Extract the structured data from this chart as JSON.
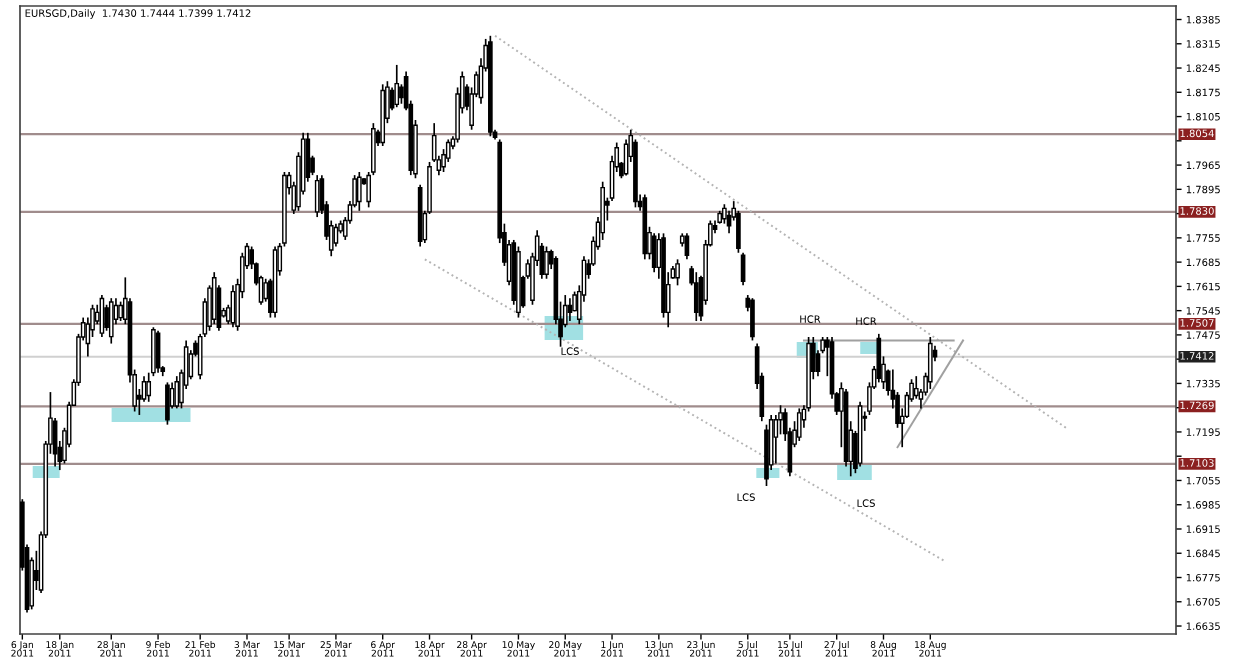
{
  "chart_data": {
    "type": "candlestick",
    "title": "EURSGD,Daily  1.7430 1.7444 1.7399 1.7412",
    "categories": [
      "6 Jan 2011",
      null,
      null,
      null,
      null,
      null,
      null,
      null,
      "18 Jan 2011",
      null,
      null,
      null,
      null,
      null,
      null,
      null,
      null,
      null,
      null,
      "28 Jan 2011",
      null,
      null,
      null,
      null,
      null,
      null,
      null,
      null,
      null,
      "9 Feb 2011",
      null,
      null,
      null,
      null,
      null,
      null,
      null,
      null,
      "21 Feb 2011",
      null,
      null,
      null,
      null,
      null,
      null,
      null,
      null,
      null,
      "3 Mar 2011",
      null,
      null,
      null,
      null,
      null,
      null,
      null,
      null,
      "15 Mar 2011",
      null,
      null,
      null,
      null,
      null,
      null,
      null,
      null,
      null,
      "25 Mar 2011",
      null,
      null,
      null,
      null,
      null,
      null,
      null,
      null,
      null,
      "6 Apr 2011",
      null,
      null,
      null,
      null,
      null,
      null,
      null,
      null,
      null,
      "18 Apr 2011",
      null,
      null,
      null,
      null,
      null,
      null,
      null,
      null,
      "28 Apr 2011",
      null,
      null,
      null,
      null,
      null,
      null,
      null,
      null,
      null,
      "10 May 2011",
      null,
      null,
      null,
      null,
      null,
      null,
      null,
      null,
      null,
      "20 May 2011",
      null,
      null,
      null,
      null,
      null,
      null,
      null,
      null,
      null,
      "1 Jun 2011",
      null,
      null,
      null,
      null,
      null,
      null,
      null,
      null,
      null,
      "13 Jun 2011",
      null,
      null,
      null,
      null,
      null,
      null,
      null,
      null,
      "23 Jun 2011",
      null,
      null,
      null,
      null,
      null,
      null,
      null,
      null,
      null,
      "5 Jul 2011",
      null,
      null,
      null,
      null,
      null,
      null,
      null,
      null,
      "15 Jul 2011",
      null,
      null,
      null,
      null,
      null,
      null,
      null,
      null,
      null,
      "27 Jul 2011",
      null,
      null,
      null,
      null,
      null,
      null,
      null,
      null,
      null,
      "8 Aug 2011",
      null,
      null,
      null,
      null,
      null,
      null,
      null,
      null,
      null,
      "18 Aug 2011",
      null,
      null,
      null,
      null,
      null,
      null,
      null,
      null,
      null,
      null,
      null,
      null,
      null,
      null,
      null,
      null,
      null,
      null,
      null,
      null,
      null,
      null,
      null,
      null,
      null,
      null,
      null,
      null,
      null,
      null,
      null,
      null,
      null,
      null,
      null,
      null,
      null,
      null,
      null,
      null,
      null,
      null,
      null,
      null,
      null,
      null,
      null,
      null,
      null,
      null,
      null,
      null
    ],
    "ohlc": [
      [
        1.6992,
        1.7001,
        1.6795,
        1.6805
      ],
      [
        1.6861,
        1.687,
        1.6674,
        1.6683
      ],
      [
        1.6693,
        1.6833,
        1.6683,
        1.6824
      ],
      [
        1.6795,
        1.6852,
        1.6739,
        1.6767
      ],
      [
        1.6739,
        1.6908,
        1.673,
        1.6898
      ],
      [
        1.6898,
        1.7169,
        1.6889,
        1.716
      ],
      [
        1.716,
        1.731,
        1.7132,
        1.7235
      ],
      [
        1.7226,
        1.7235,
        1.7095,
        1.7132
      ],
      [
        1.715,
        1.7169,
        1.7085,
        1.711
      ],
      [
        1.7113,
        1.7207,
        1.7104,
        1.7198
      ],
      [
        1.716,
        1.7282,
        1.7151,
        1.7272
      ],
      [
        1.7272,
        1.7347,
        1.7272,
        1.7338
      ],
      [
        1.7338,
        1.7478,
        1.7328,
        1.7469
      ],
      [
        1.7469,
        1.7525,
        1.7459,
        1.751
      ],
      [
        1.745,
        1.7525,
        1.7413,
        1.7506
      ],
      [
        1.749,
        1.7562,
        1.7469,
        1.755
      ],
      [
        1.7515,
        1.7562,
        1.7506,
        1.754
      ],
      [
        1.748,
        1.759,
        1.7469,
        1.758
      ],
      [
        1.7553,
        1.7562,
        1.7487,
        1.7497
      ],
      [
        1.747,
        1.7581,
        1.745,
        1.757
      ],
      [
        1.752,
        1.7581,
        1.7506,
        1.756
      ],
      [
        1.7525,
        1.7571,
        1.7515,
        1.756
      ],
      [
        1.752,
        1.7641,
        1.7506,
        1.758
      ],
      [
        1.757,
        1.7581,
        1.7338,
        1.736
      ],
      [
        1.727,
        1.7375,
        1.7254,
        1.736
      ],
      [
        1.73,
        1.7319,
        1.7244,
        1.729
      ],
      [
        1.729,
        1.7356,
        1.7282,
        1.734
      ],
      [
        1.73,
        1.7366,
        1.7282,
        1.734
      ],
      [
        1.7366,
        1.7497,
        1.7356,
        1.749
      ],
      [
        1.748,
        1.7487,
        1.7366,
        1.738
      ],
      [
        1.738,
        1.7385,
        1.7356,
        1.737
      ],
      [
        1.733,
        1.7338,
        1.7216,
        1.723
      ],
      [
        1.727,
        1.7338,
        1.7263,
        1.732
      ],
      [
        1.727,
        1.7356,
        1.7263,
        1.734
      ],
      [
        1.728,
        1.7375,
        1.7263,
        1.7365
      ],
      [
        1.733,
        1.7459,
        1.7319,
        1.744
      ],
      [
        1.7355,
        1.7431,
        1.7347,
        1.742
      ],
      [
        1.745,
        1.7459,
        1.7413,
        1.742
      ],
      [
        1.736,
        1.7478,
        1.7347,
        1.747
      ],
      [
        1.7478,
        1.7581,
        1.7469,
        1.757
      ],
      [
        1.75,
        1.7618,
        1.7487,
        1.761
      ],
      [
        1.752,
        1.7656,
        1.7506,
        1.764
      ],
      [
        1.761,
        1.7618,
        1.7487,
        1.7497
      ],
      [
        1.753,
        1.7553,
        1.7525,
        1.7545
      ],
      [
        1.7515,
        1.7562,
        1.7506,
        1.7553
      ],
      [
        1.751,
        1.7618,
        1.7497,
        1.76
      ],
      [
        1.75,
        1.7637,
        1.7487,
        1.762
      ],
      [
        1.76,
        1.7712,
        1.7581,
        1.77
      ],
      [
        1.7675,
        1.774,
        1.7665,
        1.773
      ],
      [
        1.772,
        1.773,
        1.7665,
        1.768
      ],
      [
        1.768,
        1.7684,
        1.7618,
        1.7625
      ],
      [
        1.757,
        1.7646,
        1.7562,
        1.764
      ],
      [
        1.758,
        1.7637,
        1.7571,
        1.7625
      ],
      [
        1.763,
        1.7637,
        1.7525,
        1.754
      ],
      [
        1.754,
        1.773,
        1.7525,
        1.772
      ],
      [
        1.766,
        1.774,
        1.7646,
        1.773
      ],
      [
        1.774,
        1.7945,
        1.773,
        1.7935
      ],
      [
        1.79,
        1.7945,
        1.788,
        1.7935
      ],
      [
        1.7835,
        1.7917,
        1.7824,
        1.7905
      ],
      [
        1.7845,
        1.8002,
        1.7833,
        1.799
      ],
      [
        1.789,
        1.8058,
        1.788,
        1.804
      ],
      [
        1.804,
        1.8058,
        1.7917,
        1.793
      ],
      [
        1.7985,
        1.7992,
        1.7936,
        1.7945
      ],
      [
        1.783,
        1.7936,
        1.7815,
        1.792
      ],
      [
        1.7925,
        1.7936,
        1.7824,
        1.7835
      ],
      [
        1.785,
        1.7861,
        1.7749,
        1.776
      ],
      [
        1.772,
        1.7805,
        1.7702,
        1.779
      ],
      [
        1.774,
        1.7796,
        1.773,
        1.7785
      ],
      [
        1.7775,
        1.7805,
        1.7768,
        1.7795
      ],
      [
        1.776,
        1.7815,
        1.7749,
        1.7805
      ],
      [
        1.7805,
        1.7861,
        1.7796,
        1.785
      ],
      [
        1.785,
        1.7936,
        1.7843,
        1.7925
      ],
      [
        1.786,
        1.7945,
        1.7833,
        1.793
      ],
      [
        1.7925,
        1.7927,
        1.7908,
        1.7912
      ],
      [
        1.786,
        1.7945,
        1.7843,
        1.7935
      ],
      [
        1.7945,
        1.8086,
        1.7936,
        1.807
      ],
      [
        1.806,
        1.8067,
        1.802,
        1.803
      ],
      [
        1.803,
        1.8198,
        1.802,
        1.818
      ],
      [
        1.81,
        1.8207,
        1.8086,
        1.819
      ],
      [
        1.818,
        1.8189,
        1.8123,
        1.813
      ],
      [
        1.814,
        1.8254,
        1.8132,
        1.82
      ],
      [
        1.819,
        1.8198,
        1.8142,
        1.816
      ],
      [
        1.822,
        1.8235,
        1.8123,
        1.813
      ],
      [
        1.814,
        1.8151,
        1.7936,
        1.795
      ],
      [
        1.794,
        1.8095,
        1.7927,
        1.808
      ],
      [
        1.79,
        1.7908,
        1.773,
        1.7745
      ],
      [
        1.775,
        1.7833,
        1.774,
        1.7825
      ],
      [
        1.783,
        1.7974,
        1.7824,
        1.796
      ],
      [
        1.798,
        1.8086,
        1.7974,
        1.805
      ],
      [
        1.795,
        1.7992,
        1.7936,
        1.798
      ],
      [
        1.796,
        1.8011,
        1.7945,
        1.7995
      ],
      [
        1.7985,
        1.8039,
        1.7974,
        1.803
      ],
      [
        1.802,
        1.8048,
        1.8011,
        1.804
      ],
      [
        1.804,
        1.8189,
        1.803,
        1.817
      ],
      [
        1.813,
        1.8235,
        1.8114,
        1.822
      ],
      [
        1.819,
        1.8198,
        1.8123,
        1.8135
      ],
      [
        1.808,
        1.8189,
        1.8067,
        1.817
      ],
      [
        1.817,
        1.8235,
        1.8161,
        1.8225
      ],
      [
        1.816,
        1.8273,
        1.8142,
        1.825
      ],
      [
        1.8245,
        1.8329,
        1.8235,
        1.831
      ],
      [
        1.832,
        1.8338,
        1.8048,
        1.806
      ],
      [
        1.806,
        1.8067,
        1.8039,
        1.8045
      ],
      [
        1.803,
        1.8039,
        1.774,
        1.7755
      ],
      [
        1.777,
        1.7796,
        1.7674,
        1.7685
      ],
      [
        1.763,
        1.7749,
        1.7618,
        1.7735
      ],
      [
        1.774,
        1.7749,
        1.7562,
        1.7575
      ],
      [
        1.754,
        1.773,
        1.7525,
        1.7715
      ],
      [
        1.764,
        1.7646,
        1.7553,
        1.756
      ],
      [
        1.7645,
        1.7693,
        1.7637,
        1.768
      ],
      [
        1.7575,
        1.7712,
        1.7562,
        1.77
      ],
      [
        1.769,
        1.7777,
        1.7674,
        1.776
      ],
      [
        1.773,
        1.774,
        1.7637,
        1.765
      ],
      [
        1.765,
        1.773,
        1.7637,
        1.7715
      ],
      [
        1.7715,
        1.7721,
        1.7665,
        1.768
      ],
      [
        1.7695,
        1.7702,
        1.7506,
        1.752
      ],
      [
        1.752,
        1.7571,
        1.7441,
        1.747
      ],
      [
        1.7505,
        1.759,
        1.7497,
        1.756
      ],
      [
        1.756,
        1.7581,
        1.7515,
        1.754
      ],
      [
        1.7545,
        1.76,
        1.7543,
        1.759
      ],
      [
        1.752,
        1.7618,
        1.7506,
        1.76
      ],
      [
        1.759,
        1.7702,
        1.7571,
        1.769
      ],
      [
        1.768,
        1.7693,
        1.7637,
        1.765
      ],
      [
        1.768,
        1.7759,
        1.7674,
        1.7745
      ],
      [
        1.773,
        1.7815,
        1.7721,
        1.78
      ],
      [
        1.777,
        1.7917,
        1.7749,
        1.79
      ],
      [
        1.786,
        1.7871,
        1.7805,
        1.785
      ],
      [
        1.787,
        1.7992,
        1.7861,
        1.7975
      ],
      [
        1.796,
        1.803,
        1.7945,
        1.8015
      ],
      [
        1.797,
        1.7974,
        1.7927,
        1.7935
      ],
      [
        1.794,
        1.8039,
        1.7935,
        1.8025
      ],
      [
        1.799,
        1.8067,
        1.7974,
        1.805
      ],
      [
        1.803,
        1.8039,
        1.7843,
        1.786
      ],
      [
        1.786,
        1.788,
        1.7833,
        1.7845
      ],
      [
        1.787,
        1.788,
        1.7693,
        1.771
      ],
      [
        1.771,
        1.7787,
        1.7693,
        1.777
      ],
      [
        1.776,
        1.7768,
        1.7656,
        1.767
      ],
      [
        1.767,
        1.7768,
        1.7637,
        1.775
      ],
      [
        1.7755,
        1.7768,
        1.7525,
        1.754
      ],
      [
        1.754,
        1.7656,
        1.7497,
        1.762
      ],
      [
        1.764,
        1.7674,
        1.7637,
        1.7665
      ],
      [
        1.764,
        1.7693,
        1.7618,
        1.768
      ],
      [
        1.774,
        1.7768,
        1.773,
        1.776
      ],
      [
        1.776,
        1.7768,
        1.7693,
        1.7705
      ],
      [
        1.7665,
        1.7674,
        1.7618,
        1.7625
      ],
      [
        1.7625,
        1.7656,
        1.7515,
        1.754
      ],
      [
        1.764,
        1.7646,
        1.7515,
        1.753
      ],
      [
        1.7575,
        1.7749,
        1.7562,
        1.7735
      ],
      [
        1.7735,
        1.7805,
        1.773,
        1.7795
      ],
      [
        1.779,
        1.7805,
        1.7768,
        1.778
      ],
      [
        1.78,
        1.7833,
        1.7796,
        1.7825
      ],
      [
        1.781,
        1.7852,
        1.7796,
        1.784
      ],
      [
        1.782,
        1.7833,
        1.7768,
        1.779
      ],
      [
        1.7815,
        1.7861,
        1.7805,
        1.784
      ],
      [
        1.7825,
        1.7833,
        1.7712,
        1.7725
      ],
      [
        1.7705,
        1.7712,
        1.7618,
        1.763
      ],
      [
        1.758,
        1.759,
        1.7543,
        1.7555
      ],
      [
        1.7575,
        1.7581,
        1.7459,
        1.747
      ],
      [
        1.744,
        1.745,
        1.7319,
        1.7335
      ],
      [
        1.7355,
        1.7366,
        1.7226,
        1.724
      ],
      [
        1.72,
        1.7216,
        1.7039,
        1.706
      ],
      [
        1.71,
        1.7244,
        1.7085,
        1.723
      ],
      [
        1.718,
        1.7244,
        1.7104,
        1.723
      ],
      [
        1.723,
        1.7272,
        1.7188,
        1.725
      ],
      [
        1.725,
        1.7263,
        1.7169,
        1.719
      ],
      [
        1.7195,
        1.7207,
        1.7067,
        1.708
      ],
      [
        1.716,
        1.7226,
        1.7151,
        1.72
      ],
      [
        1.718,
        1.7263,
        1.7169,
        1.725
      ],
      [
        1.723,
        1.7272,
        1.7207,
        1.726
      ],
      [
        1.7265,
        1.7469,
        1.7254,
        1.745
      ],
      [
        1.745,
        1.7469,
        1.7347,
        1.737
      ],
      [
        1.742,
        1.7431,
        1.7356,
        1.737
      ],
      [
        1.743,
        1.7469,
        1.7422,
        1.746
      ],
      [
        1.746,
        1.7469,
        1.7356,
        1.744
      ],
      [
        1.7455,
        1.7469,
        1.7291,
        1.7305
      ],
      [
        1.7305,
        1.731,
        1.7244,
        1.7255
      ],
      [
        1.7255,
        1.7338,
        1.7151,
        1.732
      ],
      [
        1.731,
        1.7319,
        1.7095,
        1.711
      ],
      [
        1.711,
        1.7226,
        1.7067,
        1.72
      ],
      [
        1.719,
        1.7198,
        1.7076,
        1.709
      ],
      [
        1.7105,
        1.7282,
        1.7095,
        1.727
      ],
      [
        1.724,
        1.7254,
        1.7198,
        1.7235
      ],
      [
        1.7255,
        1.7338,
        1.7244,
        1.7325
      ],
      [
        1.7325,
        1.7385,
        1.7319,
        1.7375
      ],
      [
        1.7465,
        1.7478,
        1.7338,
        1.735
      ],
      [
        1.734,
        1.7413,
        1.7319,
        1.739
      ],
      [
        1.737,
        1.7375,
        1.73,
        1.7315
      ],
      [
        1.7315,
        1.7375,
        1.7263,
        1.729
      ],
      [
        1.73,
        1.731,
        1.7207,
        1.722
      ],
      [
        1.722,
        1.7263,
        1.7151,
        1.724
      ],
      [
        1.724,
        1.731,
        1.7235,
        1.73
      ],
      [
        1.729,
        1.7347,
        1.7282,
        1.7335
      ],
      [
        1.73,
        1.7356,
        1.7291,
        1.732
      ],
      [
        1.729,
        1.7319,
        1.7263,
        1.731
      ],
      [
        1.731,
        1.7366,
        1.73,
        1.7355
      ],
      [
        1.734,
        1.7469,
        1.7319,
        1.745
      ],
      [
        1.743,
        1.7444,
        1.7399,
        1.7412
      ],
      null,
      null,
      null,
      null,
      null,
      null,
      null,
      null,
      null,
      null,
      null,
      null,
      null,
      null,
      null,
      null,
      null,
      null,
      null,
      null,
      null,
      null,
      null,
      null,
      null,
      null,
      null,
      null,
      null,
      null,
      null,
      null,
      null,
      null,
      null,
      null,
      null,
      null,
      null,
      null,
      null,
      null,
      null,
      null,
      null,
      null,
      null,
      null,
      null,
      null,
      null
    ],
    "series": [
      {
        "type": "line",
        "color": "#b4b4b4",
        "line_style": "dotted",
        "values": [
          null,
          null,
          null,
          null,
          null,
          null,
          null,
          null,
          null,
          null,
          null,
          null,
          null,
          null,
          null,
          null,
          null,
          null,
          null,
          null,
          null,
          null,
          null,
          null,
          null,
          null,
          null,
          null,
          null,
          null,
          null,
          null,
          null,
          null,
          null,
          null,
          null,
          null,
          null,
          null,
          null,
          null,
          null,
          null,
          null,
          null,
          null,
          null,
          null,
          null,
          null,
          null,
          null,
          null,
          null,
          null,
          null,
          null,
          null,
          null,
          null,
          null,
          null,
          null,
          null,
          null,
          null,
          null,
          null,
          null,
          null,
          null,
          null,
          null,
          null,
          null,
          null,
          null,
          null,
          null,
          null,
          null,
          null,
          null,
          null,
          null,
          null,
          null,
          null,
          null,
          null,
          null,
          null,
          null,
          null,
          null,
          null,
          null,
          null,
          null,
          null,
          1.8338,
          null,
          null,
          null,
          null,
          null,
          null,
          null,
          null,
          null,
          null,
          null,
          null,
          null,
          null,
          null,
          null,
          null,
          null,
          null,
          null,
          null,
          null,
          null,
          null,
          null,
          null,
          null,
          null,
          null,
          null,
          null,
          null,
          null,
          null,
          null,
          null,
          null,
          null,
          null,
          null,
          null,
          null,
          null,
          null,
          null,
          null,
          null,
          null,
          null,
          null,
          null,
          null,
          null,
          null,
          null,
          null,
          null,
          null,
          null,
          null,
          null,
          null,
          null,
          null,
          null,
          null,
          null,
          null,
          null,
          null,
          null,
          null,
          null,
          null,
          null,
          null,
          null,
          null,
          null,
          null,
          null,
          null,
          null,
          null,
          null,
          null,
          null,
          null,
          null,
          null,
          null,
          null,
          null,
          null,
          null,
          null,
          null,
          null,
          null,
          null,
          null,
          null,
          null,
          null,
          null,
          null,
          null,
          null,
          null,
          null,
          null,
          null,
          null,
          null,
          null,
          null,
          null,
          null,
          null,
          null,
          null,
          1.7207,
          null,
          null,
          null,
          null,
          null,
          null,
          null,
          null,
          null,
          null,
          null,
          null,
          null,
          null,
          null,
          null,
          null,
          null,
          null,
          null,
          null,
          null,
          null
        ]
      },
      {
        "type": "line",
        "color": "#b4b4b4",
        "line_style": "dotted",
        "values": [
          null,
          null,
          null,
          null,
          null,
          null,
          null,
          null,
          null,
          null,
          null,
          null,
          null,
          null,
          null,
          null,
          null,
          null,
          null,
          null,
          null,
          null,
          null,
          null,
          null,
          null,
          null,
          null,
          null,
          null,
          null,
          null,
          null,
          null,
          null,
          null,
          null,
          null,
          null,
          null,
          null,
          null,
          null,
          null,
          null,
          null,
          null,
          null,
          null,
          null,
          null,
          null,
          null,
          null,
          null,
          null,
          null,
          null,
          null,
          null,
          null,
          null,
          null,
          null,
          null,
          null,
          null,
          null,
          null,
          null,
          null,
          null,
          null,
          null,
          null,
          null,
          null,
          null,
          null,
          null,
          null,
          null,
          null,
          null,
          null,
          null,
          1.7693,
          null,
          null,
          null,
          null,
          null,
          null,
          null,
          null,
          null,
          null,
          null,
          null,
          null,
          null,
          null,
          null,
          null,
          null,
          null,
          null,
          null,
          null,
          null,
          null,
          null,
          null,
          null,
          null,
          null,
          null,
          null,
          null,
          null,
          null,
          null,
          null,
          null,
          null,
          null,
          null,
          null,
          null,
          null,
          null,
          null,
          null,
          null,
          null,
          null,
          null,
          null,
          null,
          null,
          null,
          null,
          null,
          null,
          null,
          null,
          null,
          null,
          null,
          null,
          null,
          null,
          null,
          null,
          null,
          null,
          null,
          null,
          null,
          null,
          null,
          null,
          null,
          null,
          null,
          null,
          null,
          null,
          null,
          null,
          null,
          null,
          null,
          null,
          null,
          null,
          null,
          null,
          null,
          null,
          null,
          null,
          null,
          null,
          null,
          null,
          null,
          null,
          null,
          null,
          null,
          null,
          null,
          null,
          null,
          null,
          null,
          1.6823,
          null,
          null,
          null,
          null,
          null,
          null,
          null,
          null,
          null,
          null,
          null,
          null,
          null,
          null,
          null,
          null,
          null,
          null,
          null,
          null,
          null,
          null,
          null,
          null,
          null,
          null,
          null,
          null,
          null,
          null,
          null,
          null,
          null,
          null,
          null,
          null,
          null,
          null,
          null,
          null,
          null,
          null,
          null,
          null,
          null,
          null,
          null,
          null,
          null
        ]
      },
      {
        "type": "line",
        "color": "#a0a0a0",
        "line_style": "solid",
        "values": [
          null,
          null,
          null,
          null,
          null,
          null,
          null,
          null,
          null,
          null,
          null,
          null,
          null,
          null,
          null,
          null,
          null,
          null,
          null,
          null,
          null,
          null,
          null,
          null,
          null,
          null,
          null,
          null,
          null,
          null,
          null,
          null,
          null,
          null,
          null,
          null,
          null,
          null,
          null,
          null,
          null,
          null,
          null,
          null,
          null,
          null,
          null,
          null,
          null,
          null,
          null,
          null,
          null,
          null,
          null,
          null,
          null,
          null,
          null,
          null,
          null,
          null,
          null,
          null,
          null,
          null,
          null,
          null,
          null,
          null,
          null,
          null,
          null,
          null,
          null,
          null,
          null,
          null,
          null,
          null,
          null,
          null,
          null,
          null,
          null,
          null,
          null,
          null,
          null,
          null,
          null,
          null,
          null,
          null,
          null,
          null,
          null,
          null,
          null,
          null,
          null,
          null,
          null,
          null,
          null,
          null,
          null,
          null,
          null,
          null,
          null,
          null,
          null,
          null,
          null,
          null,
          null,
          null,
          null,
          null,
          null,
          null,
          null,
          null,
          null,
          null,
          null,
          null,
          null,
          null,
          null,
          null,
          null,
          null,
          null,
          null,
          null,
          null,
          null,
          null,
          null,
          null,
          null,
          null,
          null,
          null,
          null,
          null,
          null,
          null,
          null,
          null,
          null,
          null,
          null,
          null,
          null,
          null,
          null,
          null,
          null,
          null,
          null,
          null,
          null,
          null,
          null,
          1.7459,
          null,
          null,
          null,
          null,
          null,
          null,
          null,
          null,
          null,
          null,
          null,
          null,
          null,
          null,
          null,
          null,
          null,
          null,
          null,
          null,
          null,
          null,
          null,
          null,
          null,
          null,
          null,
          null,
          null,
          null,
          null,
          1.7459,
          null,
          null,
          null,
          null,
          null,
          null,
          null,
          null,
          null,
          null,
          null,
          null,
          null,
          null,
          null,
          null,
          null,
          null,
          null,
          null,
          null,
          null,
          null,
          null,
          null,
          null,
          null,
          null,
          null,
          null,
          null,
          null,
          null,
          null,
          null,
          null,
          null,
          null,
          null,
          null,
          null,
          null,
          null,
          null,
          null,
          null,
          null
        ]
      },
      {
        "type": "line",
        "color": "#a0a0a0",
        "line_style": "solid",
        "values": [
          null,
          null,
          null,
          null,
          null,
          null,
          null,
          null,
          null,
          null,
          null,
          null,
          null,
          null,
          null,
          null,
          null,
          null,
          null,
          null,
          null,
          null,
          null,
          null,
          null,
          null,
          null,
          null,
          null,
          null,
          null,
          null,
          null,
          null,
          null,
          null,
          null,
          null,
          null,
          null,
          null,
          null,
          null,
          null,
          null,
          null,
          null,
          null,
          null,
          null,
          null,
          null,
          null,
          null,
          null,
          null,
          null,
          null,
          null,
          null,
          null,
          null,
          null,
          null,
          null,
          null,
          null,
          null,
          null,
          null,
          null,
          null,
          null,
          null,
          null,
          null,
          null,
          null,
          null,
          null,
          null,
          null,
          null,
          null,
          null,
          null,
          null,
          null,
          null,
          null,
          null,
          null,
          null,
          null,
          null,
          null,
          null,
          null,
          null,
          null,
          null,
          null,
          null,
          null,
          null,
          null,
          null,
          null,
          null,
          null,
          null,
          null,
          null,
          null,
          null,
          null,
          null,
          null,
          null,
          null,
          null,
          null,
          null,
          null,
          null,
          null,
          null,
          null,
          null,
          null,
          null,
          null,
          null,
          null,
          null,
          null,
          null,
          null,
          null,
          null,
          null,
          null,
          null,
          null,
          null,
          null,
          null,
          null,
          null,
          null,
          null,
          null,
          null,
          null,
          null,
          null,
          null,
          null,
          null,
          null,
          null,
          null,
          null,
          null,
          null,
          null,
          null,
          null,
          null,
          null,
          null,
          null,
          null,
          null,
          null,
          null,
          null,
          null,
          null,
          null,
          null,
          null,
          null,
          null,
          null,
          null,
          null,
          1.7151,
          null,
          null,
          null,
          null,
          null,
          null,
          null,
          null,
          null,
          null,
          null,
          null,
          null,
          1.7459,
          null,
          null,
          null,
          null,
          null,
          null,
          null,
          null,
          null,
          null,
          null,
          null,
          null,
          null,
          null,
          null,
          null,
          null,
          null,
          null,
          null,
          null,
          null,
          null,
          null,
          null,
          null,
          null,
          null,
          null,
          null,
          null,
          null,
          null,
          null,
          null,
          null,
          null,
          null,
          null,
          null,
          null,
          null,
          null,
          null
        ]
      }
    ],
    "marker": "none",
    "ylim": [
      1.6612,
      1.8424
    ],
    "yticks": [
      1.6635,
      1.6705,
      1.6775,
      1.6845,
      1.6915,
      1.6985,
      1.7055,
      {
        "value": 1.7125,
        "label": null
      },
      1.7195,
      {
        "value": 1.7265,
        "label": null
      },
      1.7335,
      {
        "value": 1.7405,
        "label": null
      },
      1.7475,
      1.7545,
      1.7615,
      1.7685,
      1.7755,
      {
        "value": 1.7825,
        "label": null
      },
      1.7895,
      1.7965,
      {
        "value": 1.8035,
        "label": null
      },
      1.8105,
      1.8175,
      1.8245,
      1.8315,
      1.8385
    ],
    "ref_lines": [
      {
        "axis": "y",
        "value": 1.8054,
        "label": "1.8054",
        "color": "#a08c8c"
      },
      {
        "axis": "y",
        "value": 1.783,
        "label": "1.7830",
        "color": "#a08c8c"
      },
      {
        "axis": "y",
        "value": 1.7507,
        "label": "1.7507",
        "color": "#a08c8c"
      },
      {
        "axis": "y",
        "value": 1.7412,
        "label": "1.7412",
        "color": "#d0d0d0"
      },
      {
        "axis": "y",
        "value": 1.7269,
        "label": "1.7269",
        "color": "#a08c8c"
      },
      {
        "axis": "y",
        "value": 1.7103,
        "label": "1.7103",
        "color": "#a08c8c"
      }
    ],
    "annotations": [
      "LCS",
      "LCS",
      "HCR",
      "HCR",
      "LCS"
    ],
    "grid": false
  }
}
